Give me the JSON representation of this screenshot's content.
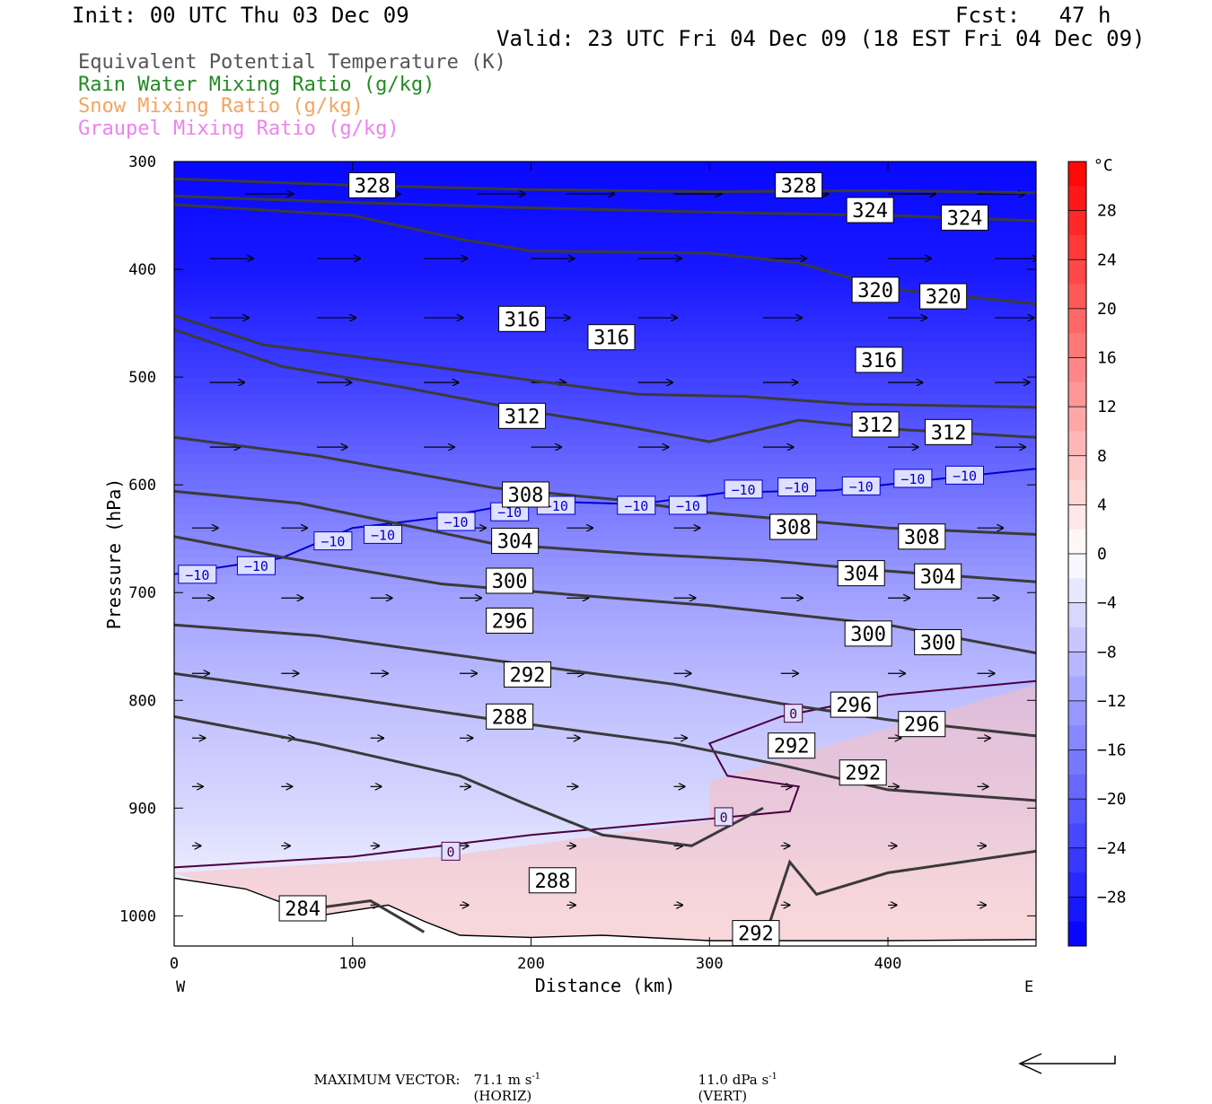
{
  "header": {
    "init": "Init: 00 UTC Thu 03 Dec 09",
    "fcst": "Fcst:   47 h",
    "valid": "Valid: 23 UTC Fri 04 Dec 09 (18 EST Fri 04 Dec 09)"
  },
  "legend": [
    {
      "text": "Equivalent Potential Temperature (K)",
      "color": "#555555"
    },
    {
      "text": "Rain Water Mixing Ratio (g/kg)",
      "color": "#228b22"
    },
    {
      "text": "Snow Mixing Ratio (g/kg)",
      "color": "#f4a460"
    },
    {
      "text": "Graupel Mixing Ratio (g/kg)",
      "color": "#ee82ee"
    }
  ],
  "footer": {
    "max_label": "MAXIMUM VECTOR:",
    "horiz": "71.1 m s",
    "horiz_exp": "-1",
    "horiz_tag": "(HORIZ)",
    "vert": "11.0 dPa s",
    "vert_exp": "-1",
    "vert_tag": "(VERT)"
  },
  "chart_data": {
    "type": "cross-section contour",
    "xlabel": "Distance (km)",
    "ylabel": "Pressure (hPa)",
    "xlim": [
      0,
      483
    ],
    "ylim": [
      1028,
      300
    ],
    "x_ticks": [
      "0",
      "100",
      "200",
      "300",
      "400"
    ],
    "x_tick_values": [
      0,
      100,
      200,
      300,
      400
    ],
    "y_ticks": [
      "300",
      "400",
      "500",
      "600",
      "700",
      "800",
      "900",
      "1000"
    ],
    "y_tick_values": [
      300,
      400,
      500,
      600,
      700,
      800,
      900,
      1000
    ],
    "west_label": "W",
    "east_label": "E",
    "colorbar": {
      "unit": "°C",
      "ticks": [
        "28",
        "24",
        "20",
        "16",
        "12",
        "8",
        "4",
        "0",
        "−4",
        "−8",
        "−12",
        "−16",
        "−20",
        "−24",
        "−28"
      ],
      "tick_values": [
        28,
        24,
        20,
        16,
        12,
        8,
        4,
        0,
        -4,
        -8,
        -12,
        -16,
        -20,
        -24,
        -28
      ],
      "range": [
        -32,
        32
      ]
    },
    "theta_e_contours": [
      {
        "label": "328",
        "points": [
          [
            0,
            316
          ],
          [
            100,
            322
          ],
          [
            200,
            326
          ],
          [
            300,
            328
          ],
          [
            400,
            327
          ],
          [
            483,
            329
          ]
        ],
        "labels_at": [
          [
            111,
            322
          ],
          [
            350,
            322
          ]
        ]
      },
      {
        "label": "324",
        "points": [
          [
            0,
            332
          ],
          [
            100,
            338
          ],
          [
            200,
            343
          ],
          [
            300,
            347
          ],
          [
            400,
            350
          ],
          [
            483,
            355
          ]
        ],
        "labels_at": [
          [
            390,
            345
          ],
          [
            443,
            352
          ]
        ]
      },
      {
        "label": "320",
        "points": [
          [
            0,
            340
          ],
          [
            100,
            350
          ],
          [
            160,
            372
          ],
          [
            200,
            383
          ],
          [
            300,
            385
          ],
          [
            350,
            394
          ],
          [
            400,
            418
          ],
          [
            483,
            432
          ]
        ],
        "labels_at": [
          [
            393,
            419
          ],
          [
            431,
            425
          ]
        ]
      },
      {
        "label": "316",
        "points": [
          [
            0,
            443
          ],
          [
            50,
            470
          ],
          [
            130,
            487
          ],
          [
            200,
            503
          ],
          [
            260,
            516
          ],
          [
            320,
            518
          ],
          [
            380,
            525
          ],
          [
            483,
            528
          ]
        ],
        "labels_at": [
          [
            195,
            446
          ],
          [
            245,
            463
          ],
          [
            395,
            484
          ]
        ]
      },
      {
        "label": "312",
        "points": [
          [
            0,
            456
          ],
          [
            60,
            490
          ],
          [
            130,
            510
          ],
          [
            200,
            532
          ],
          [
            250,
            545
          ],
          [
            300,
            560
          ],
          [
            350,
            540
          ],
          [
            400,
            548
          ],
          [
            483,
            556
          ]
        ],
        "labels_at": [
          [
            195,
            536
          ],
          [
            393,
            544
          ],
          [
            434,
            551
          ]
        ]
      },
      {
        "label": "308",
        "points": [
          [
            0,
            556
          ],
          [
            80,
            573
          ],
          [
            180,
            603
          ],
          [
            250,
            614
          ],
          [
            300,
            626
          ],
          [
            400,
            640
          ],
          [
            483,
            646
          ]
        ],
        "labels_at": [
          [
            197,
            609
          ],
          [
            347,
            639
          ],
          [
            419,
            648
          ]
        ]
      },
      {
        "label": "304",
        "points": [
          [
            0,
            606
          ],
          [
            70,
            617
          ],
          [
            180,
            655
          ],
          [
            260,
            664
          ],
          [
            330,
            670
          ],
          [
            400,
            680
          ],
          [
            483,
            690
          ]
        ],
        "labels_at": [
          [
            191,
            652
          ],
          [
            385,
            682
          ],
          [
            428,
            685
          ]
        ]
      },
      {
        "label": "300",
        "points": [
          [
            0,
            648
          ],
          [
            60,
            667
          ],
          [
            150,
            692
          ],
          [
            230,
            703
          ],
          [
            300,
            712
          ],
          [
            400,
            730
          ],
          [
            483,
            756
          ]
        ],
        "labels_at": [
          [
            188,
            689
          ],
          [
            389,
            738
          ],
          [
            428,
            746
          ]
        ]
      },
      {
        "label": "296",
        "points": [
          [
            0,
            730
          ],
          [
            80,
            740
          ],
          [
            180,
            763
          ],
          [
            280,
            785
          ],
          [
            340,
            803
          ],
          [
            400,
            818
          ],
          [
            483,
            833
          ]
        ],
        "labels_at": [
          [
            188,
            726
          ],
          [
            381,
            804
          ],
          [
            419,
            822
          ]
        ]
      },
      {
        "label": "292",
        "points": [
          [
            0,
            775
          ],
          [
            90,
            796
          ],
          [
            180,
            818
          ],
          [
            280,
            840
          ],
          [
            340,
            860
          ],
          [
            400,
            883
          ],
          [
            483,
            893
          ]
        ],
        "labels_at": [
          [
            198,
            776
          ],
          [
            346,
            842
          ],
          [
            386,
            867
          ]
        ]
      },
      {
        "label": "288",
        "points": [
          [
            0,
            815
          ],
          [
            80,
            840
          ],
          [
            160,
            870
          ],
          [
            195,
            895
          ],
          [
            240,
            925
          ],
          [
            290,
            935
          ],
          [
            330,
            900
          ]
        ],
        "labels_at": [
          [
            188,
            815
          ],
          [
            212,
            967
          ]
        ]
      },
      {
        "label": "284",
        "points": [
          [
            70,
            995
          ],
          [
            110,
            986
          ],
          [
            140,
            1015
          ]
        ],
        "labels_at": [
          [
            72,
            993
          ]
        ]
      },
      {
        "label": "292",
        "points": [
          [
            330,
            1025
          ],
          [
            345,
            950
          ],
          [
            360,
            980
          ],
          [
            400,
            960
          ],
          [
            483,
            940
          ]
        ],
        "labels_at": [
          [
            326,
            1016
          ]
        ]
      }
    ],
    "isotherms": [
      {
        "value": "−10",
        "color": "#0000cc",
        "points": [
          [
            0,
            683
          ],
          [
            60,
            668
          ],
          [
            100,
            640
          ],
          [
            150,
            630
          ],
          [
            200,
            615
          ],
          [
            260,
            618
          ],
          [
            310,
            607
          ],
          [
            370,
            605
          ],
          [
            420,
            596
          ],
          [
            483,
            585
          ]
        ],
        "labels": [
          [
            13,
            683
          ],
          [
            46,
            675
          ],
          [
            89,
            652
          ],
          [
            117,
            646
          ],
          [
            158,
            634
          ],
          [
            188,
            625
          ],
          [
            214,
            619
          ],
          [
            259,
            619
          ],
          [
            288,
            619
          ],
          [
            319,
            604
          ],
          [
            349,
            602
          ],
          [
            385,
            601
          ],
          [
            414,
            594
          ],
          [
            443,
            591
          ]
        ]
      },
      {
        "value": "0",
        "color": "#4b0040",
        "points": [
          [
            0,
            955
          ],
          [
            100,
            945
          ],
          [
            200,
            925
          ],
          [
            300,
            910
          ],
          [
            345,
            903
          ],
          [
            350,
            880
          ],
          [
            310,
            870
          ],
          [
            300,
            840
          ],
          [
            340,
            815
          ],
          [
            400,
            795
          ],
          [
            483,
            782
          ]
        ],
        "labels": [
          [
            155,
            940
          ],
          [
            308,
            908
          ],
          [
            347,
            812
          ]
        ]
      }
    ],
    "temperature_field": [
      [
        300,
        -31
      ],
      [
        400,
        -29
      ],
      [
        500,
        -24
      ],
      [
        600,
        -18
      ],
      [
        700,
        -12
      ],
      [
        800,
        -8
      ],
      [
        900,
        -5
      ],
      [
        1000,
        -1
      ]
    ],
    "vectors": [
      {
        "p": 330,
        "xs": [
          40,
          100,
          170,
          220,
          280,
          340,
          400,
          450
        ],
        "len": 22
      },
      {
        "p": 390,
        "xs": [
          20,
          80,
          140,
          200,
          260,
          330,
          400,
          460
        ],
        "len": 20
      },
      {
        "p": 445,
        "xs": [
          20,
          80,
          140,
          200,
          260,
          330,
          400,
          460
        ],
        "len": 18
      },
      {
        "p": 505,
        "xs": [
          20,
          80,
          140,
          200,
          260,
          330,
          400,
          460
        ],
        "len": 16
      },
      {
        "p": 565,
        "xs": [
          20,
          80,
          140,
          200,
          260,
          330,
          400,
          460
        ],
        "len": 14
      },
      {
        "p": 640,
        "xs": [
          10,
          60,
          110,
          160,
          220,
          280,
          340,
          400,
          450
        ],
        "len": 12
      },
      {
        "p": 705,
        "xs": [
          10,
          60,
          110,
          160,
          220,
          280,
          340,
          400,
          450
        ],
        "len": 10
      },
      {
        "p": 775,
        "xs": [
          10,
          60,
          110,
          160,
          220,
          280,
          340,
          400,
          450
        ],
        "len": 8
      },
      {
        "p": 835,
        "xs": [
          10,
          60,
          110,
          160,
          220,
          280,
          340,
          400,
          450
        ],
        "len": 6
      },
      {
        "p": 880,
        "xs": [
          10,
          60,
          110,
          160,
          220,
          280,
          340,
          400,
          450
        ],
        "len": 5
      },
      {
        "p": 935,
        "xs": [
          10,
          60,
          110,
          160,
          220,
          280,
          340,
          400,
          450
        ],
        "len": 4
      },
      {
        "p": 990,
        "xs": [
          60,
          110,
          160,
          220,
          280,
          340,
          400,
          450
        ],
        "len": 4
      }
    ],
    "terrain": [
      [
        0,
        965
      ],
      [
        40,
        975
      ],
      [
        80,
        1000
      ],
      [
        120,
        990
      ],
      [
        140,
        1005
      ],
      [
        160,
        1018
      ],
      [
        200,
        1020
      ],
      [
        240,
        1018
      ],
      [
        300,
        1023
      ],
      [
        400,
        1023
      ],
      [
        483,
        1022
      ]
    ]
  }
}
